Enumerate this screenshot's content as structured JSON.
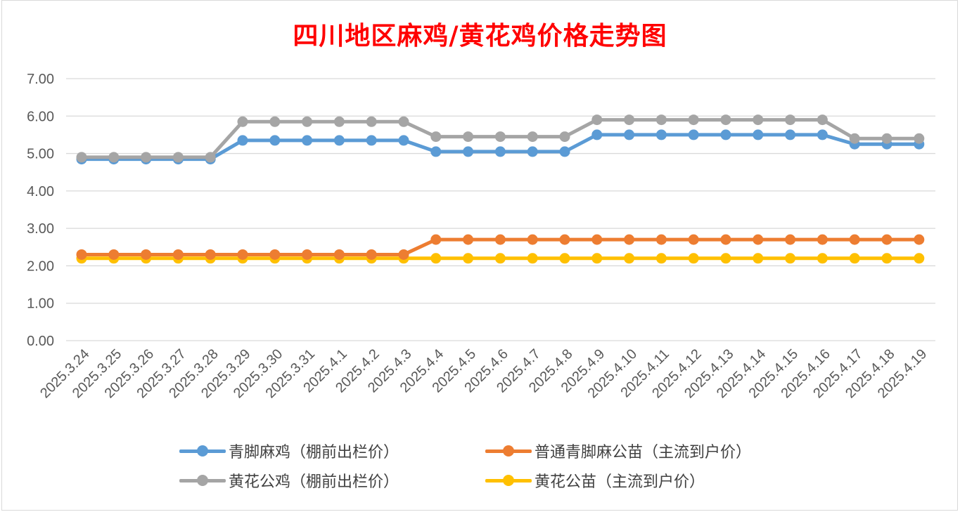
{
  "chart_data": {
    "type": "line",
    "title": "四川地区麻鸡/黄花鸡价格走势图",
    "xlabel": "",
    "ylabel": "",
    "ylim": [
      0,
      7
    ],
    "y_ticks": [
      "0.00",
      "1.00",
      "2.00",
      "3.00",
      "4.00",
      "5.00",
      "6.00",
      "7.00"
    ],
    "grid": true,
    "legend_position": "bottom",
    "categories": [
      "2025.3.24",
      "2025.3.25",
      "2025.3.26",
      "2025.3.27",
      "2025.3.28",
      "2025.3.29",
      "2025.3.30",
      "2025.3.31",
      "2025.4.1",
      "2025.4.2",
      "2025.4.3",
      "2025.4.4",
      "2025.4.5",
      "2025.4.6",
      "2025.4.7",
      "2025.4.8",
      "2025.4.9",
      "2025.4.10",
      "2025.4.11",
      "2025.4.12",
      "2025.4.13",
      "2025.4.14",
      "2025.4.15",
      "2025.4.16",
      "2025.4.17",
      "2025.4.18",
      "2025.4.19"
    ],
    "series": [
      {
        "name": "青脚麻鸡（棚前出栏价）",
        "color": "#5b9bd5",
        "values": [
          4.85,
          4.85,
          4.85,
          4.85,
          4.85,
          5.35,
          5.35,
          5.35,
          5.35,
          5.35,
          5.35,
          5.05,
          5.05,
          5.05,
          5.05,
          5.05,
          5.5,
          5.5,
          5.5,
          5.5,
          5.5,
          5.5,
          5.5,
          5.5,
          5.25,
          5.25,
          5.25
        ]
      },
      {
        "name": "普通青脚麻公苗（主流到户价）",
        "color": "#ed7d31",
        "values": [
          2.3,
          2.3,
          2.3,
          2.3,
          2.3,
          2.3,
          2.3,
          2.3,
          2.3,
          2.3,
          2.3,
          2.7,
          2.7,
          2.7,
          2.7,
          2.7,
          2.7,
          2.7,
          2.7,
          2.7,
          2.7,
          2.7,
          2.7,
          2.7,
          2.7,
          2.7,
          2.7
        ]
      },
      {
        "name": "黄花公鸡（棚前出栏价）",
        "color": "#a5a5a5",
        "values": [
          4.9,
          4.9,
          4.9,
          4.9,
          4.9,
          5.85,
          5.85,
          5.85,
          5.85,
          5.85,
          5.85,
          5.45,
          5.45,
          5.45,
          5.45,
          5.45,
          5.9,
          5.9,
          5.9,
          5.9,
          5.9,
          5.9,
          5.9,
          5.9,
          5.4,
          5.4,
          5.4
        ]
      },
      {
        "name": "黄花公苗（主流到户价）",
        "color": "#ffc000",
        "values": [
          2.2,
          2.2,
          2.2,
          2.2,
          2.2,
          2.2,
          2.2,
          2.2,
          2.2,
          2.2,
          2.2,
          2.2,
          2.2,
          2.2,
          2.2,
          2.2,
          2.2,
          2.2,
          2.2,
          2.2,
          2.2,
          2.2,
          2.2,
          2.2,
          2.2,
          2.2,
          2.2
        ]
      }
    ]
  }
}
